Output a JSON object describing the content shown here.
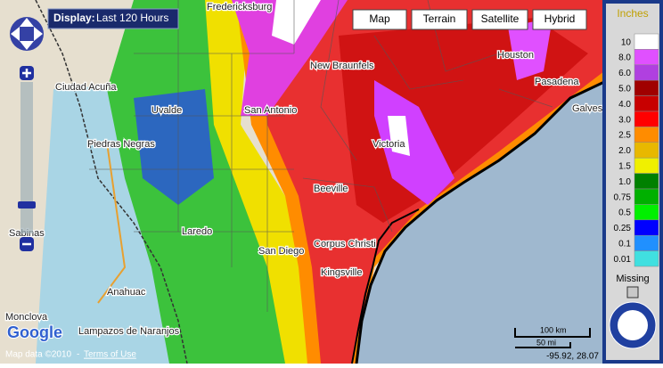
{
  "display": {
    "label": "Display:",
    "period": "Last 120 Hours"
  },
  "map_types": [
    "Map",
    "Terrain",
    "Satellite",
    "Hybrid"
  ],
  "legend": {
    "title": "Inches",
    "items": [
      {
        "label": "10",
        "color": "#ffffff"
      },
      {
        "label": "8.0",
        "color": "#e050ff"
      },
      {
        "label": "6.0",
        "color": "#b040e0"
      },
      {
        "label": "5.0",
        "color": "#a00000"
      },
      {
        "label": "4.0",
        "color": "#c80000"
      },
      {
        "label": "3.0",
        "color": "#ff0000"
      },
      {
        "label": "2.5",
        "color": "#ff8c00"
      },
      {
        "label": "2.0",
        "color": "#e8b800"
      },
      {
        "label": "1.5",
        "color": "#f0f000"
      },
      {
        "label": "1.0",
        "color": "#008000"
      },
      {
        "label": "0.75",
        "color": "#00b000"
      },
      {
        "label": "0.5",
        "color": "#00f000"
      },
      {
        "label": "0.25",
        "color": "#0000ff"
      },
      {
        "label": "0.1",
        "color": "#2090ff"
      },
      {
        "label": "0.01",
        "color": "#40e0e0"
      }
    ],
    "missing": "Missing"
  },
  "places": [
    "Fredericksburg",
    "New Braunfels",
    "San Antonio",
    "Houston",
    "Pasadena",
    "Galveston",
    "Victoria",
    "Beeville",
    "Corpus Christi",
    "Kingsville",
    "Uvalde",
    "Piedras Negras",
    "Ciudad Acuña",
    "Sabinas",
    "Laredo",
    "Anahuac",
    "Lampazos de Naranjos",
    "Monclova",
    "San Diego"
  ],
  "scale": {
    "km": "100 km",
    "mi": "50 mi"
  },
  "coordinates": "-95.92, 28.07",
  "attribution": {
    "map_data": "Map data ©2010",
    "separator": "-",
    "terms": "Terms of Use"
  },
  "logo": "Google"
}
